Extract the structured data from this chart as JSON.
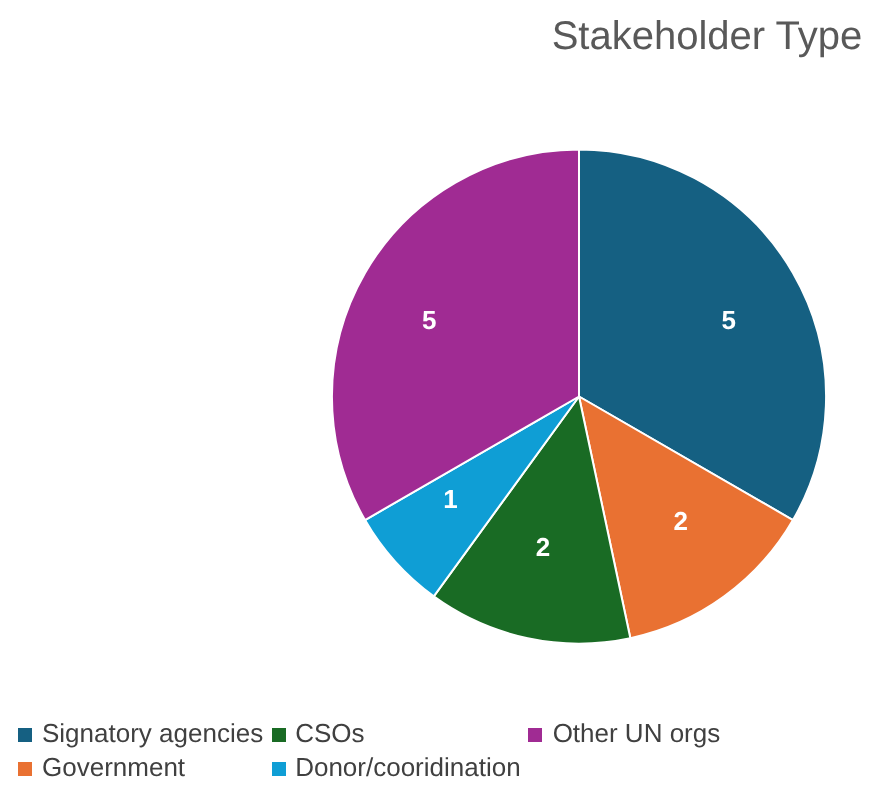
{
  "chart_data": {
    "type": "pie",
    "title": "Stakeholder Type",
    "categories": [
      "Signatory agencies",
      "Government",
      "CSOs",
      "Donor/cooridination",
      "Other UN orgs"
    ],
    "values": [
      5,
      2,
      2,
      1,
      5
    ],
    "colors": [
      "#156082",
      "#e97132",
      "#196b24",
      "#0f9ed5",
      "#a02b93"
    ],
    "data_labels": true,
    "legend": "bottom"
  }
}
